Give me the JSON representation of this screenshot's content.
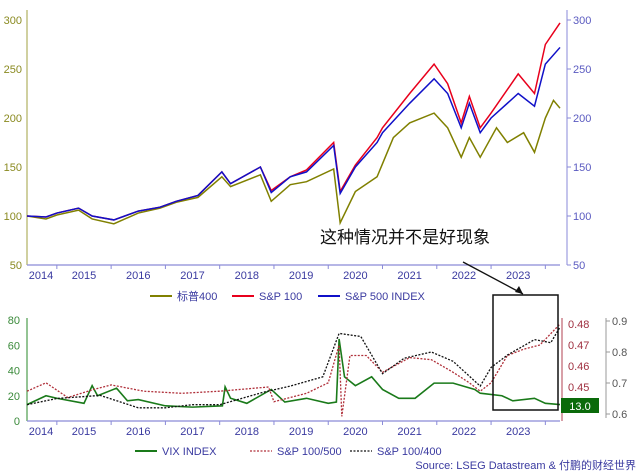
{
  "chart_data": [
    {
      "type": "line",
      "xlim": [
        2014.45,
        2024.27
      ],
      "ylim_left": [
        50,
        300
      ],
      "ylim_right": [
        50,
        300
      ],
      "yticks": [
        50,
        100,
        150,
        200,
        250,
        300
      ],
      "xtick_labels": [
        "2014",
        "2015",
        "2016",
        "2017",
        "2018",
        "2019",
        "2020",
        "2021",
        "2022",
        "2023"
      ],
      "annotation": "这种情况并不是好现象",
      "legend_placement": "bottom",
      "series": [
        {
          "name": "标普400",
          "color": "#808000",
          "points": [
            [
              2014.45,
              100
            ],
            [
              2014.8,
              97
            ],
            [
              2015.0,
              101
            ],
            [
              2015.4,
              106
            ],
            [
              2015.65,
              97
            ],
            [
              2016.05,
              92
            ],
            [
              2016.5,
              103
            ],
            [
              2016.9,
              108
            ],
            [
              2017.2,
              114
            ],
            [
              2017.6,
              119
            ],
            [
              2018.04,
              140
            ],
            [
              2018.2,
              130
            ],
            [
              2018.75,
              142
            ],
            [
              2018.95,
              115
            ],
            [
              2019.3,
              132
            ],
            [
              2019.6,
              135
            ],
            [
              2020.1,
              148
            ],
            [
              2020.22,
              93
            ],
            [
              2020.5,
              125
            ],
            [
              2020.9,
              140
            ],
            [
              2021.2,
              180
            ],
            [
              2021.5,
              195
            ],
            [
              2021.95,
              205
            ],
            [
              2022.2,
              190
            ],
            [
              2022.45,
              160
            ],
            [
              2022.6,
              180
            ],
            [
              2022.8,
              160
            ],
            [
              2023.1,
              190
            ],
            [
              2023.3,
              175
            ],
            [
              2023.6,
              185
            ],
            [
              2023.8,
              165
            ],
            [
              2024.0,
              200
            ],
            [
              2024.15,
              218
            ],
            [
              2024.27,
              210
            ]
          ]
        },
        {
          "name": "S&P 100",
          "color": "#e8001c",
          "points": [
            [
              2014.45,
              100
            ],
            [
              2014.8,
              99
            ],
            [
              2015.0,
              103
            ],
            [
              2015.4,
              108
            ],
            [
              2015.65,
              100
            ],
            [
              2016.05,
              96
            ],
            [
              2016.5,
              105
            ],
            [
              2016.9,
              109
            ],
            [
              2017.2,
              115
            ],
            [
              2017.6,
              121
            ],
            [
              2018.04,
              145
            ],
            [
              2018.2,
              133
            ],
            [
              2018.75,
              150
            ],
            [
              2018.95,
              126
            ],
            [
              2019.3,
              140
            ],
            [
              2019.6,
              147
            ],
            [
              2020.1,
              175
            ],
            [
              2020.22,
              125
            ],
            [
              2020.5,
              152
            ],
            [
              2020.9,
              180
            ],
            [
              2021.0,
              190
            ],
            [
              2021.5,
              225
            ],
            [
              2021.95,
              255
            ],
            [
              2022.2,
              235
            ],
            [
              2022.45,
              195
            ],
            [
              2022.6,
              222
            ],
            [
              2022.8,
              190
            ],
            [
              2023.0,
              205
            ],
            [
              2023.5,
              245
            ],
            [
              2023.8,
              225
            ],
            [
              2024.0,
              275
            ],
            [
              2024.27,
              297
            ]
          ]
        },
        {
          "name": "S&P 500 INDEX",
          "color": "#1010c8",
          "points": [
            [
              2014.45,
              100
            ],
            [
              2014.8,
              99
            ],
            [
              2015.0,
              103
            ],
            [
              2015.4,
              108
            ],
            [
              2015.65,
              100
            ],
            [
              2016.05,
              96
            ],
            [
              2016.5,
              105
            ],
            [
              2016.9,
              109
            ],
            [
              2017.2,
              115
            ],
            [
              2017.6,
              121
            ],
            [
              2018.04,
              145
            ],
            [
              2018.2,
              133
            ],
            [
              2018.75,
              150
            ],
            [
              2018.95,
              124
            ],
            [
              2019.3,
              140
            ],
            [
              2019.6,
              145
            ],
            [
              2020.1,
              172
            ],
            [
              2020.22,
              123
            ],
            [
              2020.5,
              150
            ],
            [
              2020.9,
              175
            ],
            [
              2021.0,
              185
            ],
            [
              2021.5,
              215
            ],
            [
              2021.95,
              240
            ],
            [
              2022.2,
              225
            ],
            [
              2022.45,
              190
            ],
            [
              2022.6,
              215
            ],
            [
              2022.8,
              185
            ],
            [
              2023.0,
              200
            ],
            [
              2023.5,
              225
            ],
            [
              2023.8,
              212
            ],
            [
              2024.0,
              255
            ],
            [
              2024.27,
              272
            ]
          ]
        }
      ]
    },
    {
      "type": "line",
      "xlim": [
        2014.45,
        2024.27
      ],
      "ylim_left": [
        0,
        80
      ],
      "yticks_left": [
        0,
        20,
        40,
        60,
        80
      ],
      "yticks_right1": [
        0.45,
        0.46,
        0.47,
        0.48
      ],
      "yticks_right2": [
        0.6,
        0.7,
        0.8,
        0.9
      ],
      "xtick_labels": [
        "2014",
        "2015",
        "2016",
        "2017",
        "2018",
        "2019",
        "2020",
        "2021",
        "2022",
        "2023"
      ],
      "last_value_label": "13.0",
      "legend_placement": "bottom",
      "source": "Source: LSEG Datastream & 付鹏的财经世界",
      "series": [
        {
          "name": "VIX INDEX",
          "color": "#1a7a1a",
          "axis": "left",
          "points": [
            [
              2014.45,
              13
            ],
            [
              2014.8,
              20
            ],
            [
              2015.0,
              18
            ],
            [
              2015.5,
              14
            ],
            [
              2015.65,
              28
            ],
            [
              2015.75,
              20
            ],
            [
              2016.1,
              26
            ],
            [
              2016.3,
              16
            ],
            [
              2016.5,
              17
            ],
            [
              2017.0,
              12
            ],
            [
              2017.5,
              11
            ],
            [
              2018.05,
              12
            ],
            [
              2018.1,
              27
            ],
            [
              2018.2,
              18
            ],
            [
              2018.5,
              14
            ],
            [
              2018.95,
              25
            ],
            [
              2019.2,
              15
            ],
            [
              2019.6,
              18
            ],
            [
              2020.0,
              14
            ],
            [
              2020.15,
              15
            ],
            [
              2020.2,
              65
            ],
            [
              2020.3,
              35
            ],
            [
              2020.5,
              28
            ],
            [
              2020.8,
              35
            ],
            [
              2021.0,
              25
            ],
            [
              2021.3,
              18
            ],
            [
              2021.6,
              18
            ],
            [
              2021.95,
              30
            ],
            [
              2022.3,
              30
            ],
            [
              2022.7,
              25
            ],
            [
              2022.8,
              22
            ],
            [
              2023.2,
              20
            ],
            [
              2023.4,
              16
            ],
            [
              2023.8,
              18
            ],
            [
              2024.0,
              14
            ],
            [
              2024.27,
              13
            ]
          ]
        },
        {
          "name": "S&P 100/500",
          "color": "#b0303a",
          "axis": "right1",
          "points": [
            [
              2014.45,
              0.448
            ],
            [
              2014.8,
              0.452
            ],
            [
              2015.2,
              0.445
            ],
            [
              2015.7,
              0.449
            ],
            [
              2016.0,
              0.451
            ],
            [
              2016.6,
              0.448
            ],
            [
              2017.3,
              0.447
            ],
            [
              2018.0,
              0.448
            ],
            [
              2018.9,
              0.45
            ],
            [
              2019.0,
              0.443
            ],
            [
              2019.6,
              0.447
            ],
            [
              2020.0,
              0.452
            ],
            [
              2020.2,
              0.47
            ],
            [
              2020.25,
              0.436
            ],
            [
              2020.4,
              0.465
            ],
            [
              2020.7,
              0.465
            ],
            [
              2021.0,
              0.457
            ],
            [
              2021.5,
              0.464
            ],
            [
              2021.9,
              0.463
            ],
            [
              2022.3,
              0.457
            ],
            [
              2022.6,
              0.452
            ],
            [
              2022.8,
              0.448
            ],
            [
              2023.0,
              0.452
            ],
            [
              2023.3,
              0.465
            ],
            [
              2023.6,
              0.468
            ],
            [
              2023.9,
              0.47
            ],
            [
              2024.27,
              0.48
            ]
          ]
        },
        {
          "name": "S&P 100/400",
          "color": "#111111",
          "axis": "right2",
          "points": [
            [
              2014.45,
              0.63
            ],
            [
              2015.0,
              0.65
            ],
            [
              2015.8,
              0.66
            ],
            [
              2016.5,
              0.62
            ],
            [
              2017.0,
              0.62
            ],
            [
              2017.5,
              0.63
            ],
            [
              2018.0,
              0.63
            ],
            [
              2018.8,
              0.67
            ],
            [
              2019.3,
              0.69
            ],
            [
              2019.9,
              0.72
            ],
            [
              2020.2,
              0.86
            ],
            [
              2020.6,
              0.85
            ],
            [
              2020.9,
              0.76
            ],
            [
              2021.0,
              0.73
            ],
            [
              2021.4,
              0.78
            ],
            [
              2021.9,
              0.8
            ],
            [
              2022.3,
              0.77
            ],
            [
              2022.8,
              0.69
            ],
            [
              2023.0,
              0.75
            ],
            [
              2023.3,
              0.79
            ],
            [
              2023.8,
              0.84
            ],
            [
              2024.1,
              0.83
            ],
            [
              2024.27,
              0.88
            ]
          ]
        }
      ]
    }
  ]
}
